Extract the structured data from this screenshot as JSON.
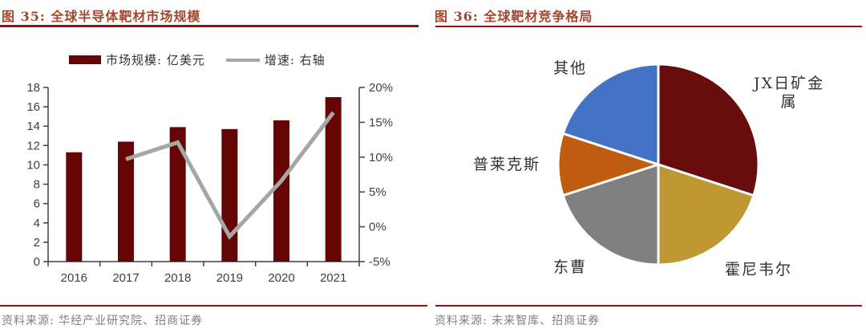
{
  "figures": {
    "fig35": {
      "title": "图 35: 全球半导体靶材市场规模",
      "source": "资料来源: 华经产业研究院、招商证券"
    },
    "fig36": {
      "title": "图 36: 全球靶材竞争格局",
      "source": "资料来源: 未来智库、招商证券"
    }
  },
  "colors": {
    "title_text": "#A4462E",
    "rule_dark_red": "#8B1515",
    "bar": "#660505",
    "growth_line": "#A6A6A6",
    "axis_text": "#404040",
    "axis_line": "#404040",
    "legend_text": "#333333",
    "source_text": "#808080",
    "pie_label_text": "#333333"
  },
  "chart_data": [
    {
      "type": "bar",
      "subtype": "combo-bar-line",
      "title": "全球半导体靶材市场规模",
      "categories": [
        "2016",
        "2017",
        "2018",
        "2019",
        "2020",
        "2021"
      ],
      "series": [
        {
          "name": "市场规模: 亿美元",
          "type": "bar",
          "axis": "left",
          "color": "#660505",
          "values": [
            11.3,
            12.4,
            13.9,
            13.7,
            14.6,
            17.0
          ]
        },
        {
          "name": "增速: 右轴",
          "type": "line",
          "axis": "right",
          "color": "#A6A6A6",
          "values": [
            null,
            9.7,
            12.1,
            -1.4,
            6.6,
            16.4
          ]
        }
      ],
      "left_axis": {
        "min": 0,
        "max": 18,
        "step": 2,
        "suffix": ""
      },
      "right_axis": {
        "min": -5,
        "max": 20,
        "step": 5,
        "suffix": "%"
      },
      "legend_position": "top",
      "grid": false
    },
    {
      "type": "pie",
      "title": "全球靶材竞争格局",
      "labels": [
        "JX日矿金属",
        "霍尼韦尔",
        "东曹",
        "普莱克斯",
        "其他"
      ],
      "values": [
        30,
        20,
        20,
        10,
        20
      ],
      "colors": [
        "#670D0D",
        "#BF9733",
        "#808080",
        "#C05D10",
        "#4472C4"
      ],
      "start_angle_deg": 0,
      "direction": "clockwise",
      "legend_position": "none"
    }
  ]
}
